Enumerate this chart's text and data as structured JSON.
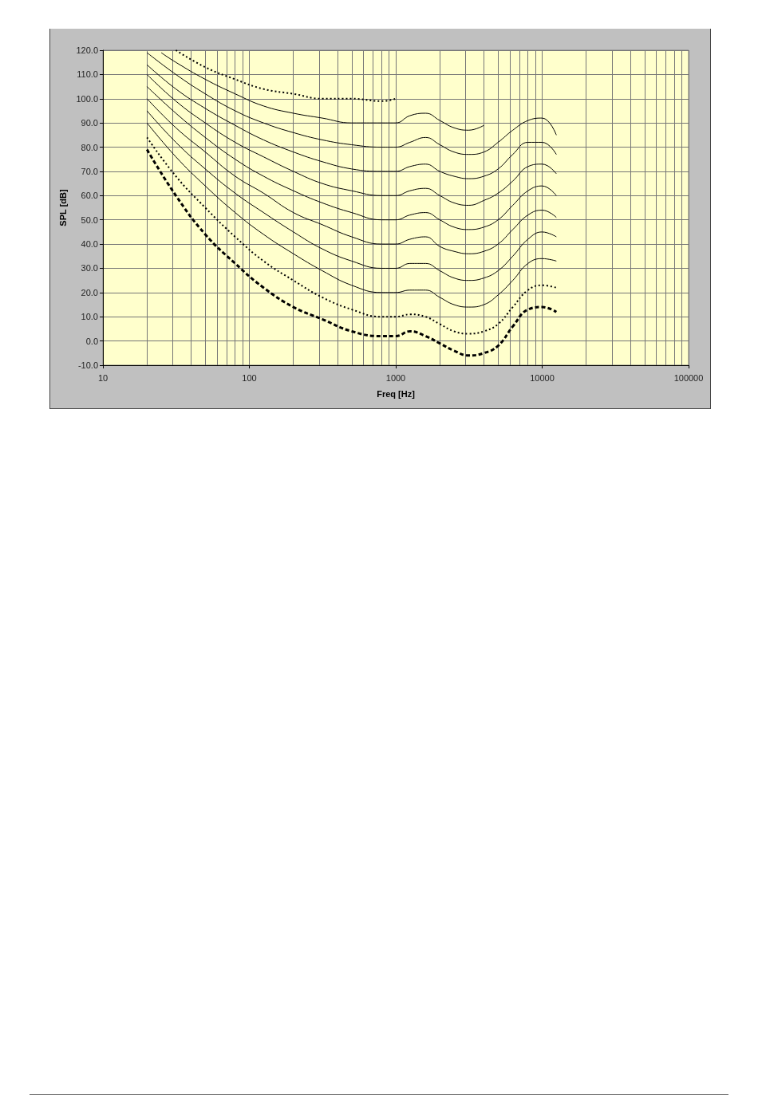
{
  "chart_data": {
    "type": "line",
    "xlabel": "Freq [Hz]",
    "ylabel": "SPL [dB]",
    "log": "x",
    "grid": true,
    "marker": "none",
    "xlim": [
      10,
      100000
    ],
    "xticks": [
      10,
      100,
      1000,
      10000,
      100000
    ],
    "ylim": [
      -10,
      120
    ],
    "yticks": [
      {
        "value": -10,
        "label": "-10.0"
      },
      {
        "value": 0,
        "label": "0.0"
      },
      {
        "value": 10,
        "label": "10.0"
      },
      {
        "value": 20,
        "label": "20.0"
      },
      {
        "value": 30,
        "label": "30.0"
      },
      {
        "value": 40,
        "label": "40.0"
      },
      {
        "value": 50,
        "label": "50.0"
      },
      {
        "value": 60,
        "label": "60.0"
      },
      {
        "value": 70,
        "label": "70.0"
      },
      {
        "value": 80,
        "label": "80.0"
      },
      {
        "value": 90,
        "label": "90.0"
      },
      {
        "value": 100,
        "label": "100.0"
      },
      {
        "value": 110,
        "label": "110.0"
      },
      {
        "value": 120,
        "label": "120.0"
      }
    ],
    "x": [
      20,
      31.5,
      50,
      80,
      125,
      200,
      315,
      500,
      800,
      1000,
      1250,
      1600,
      2000,
      2500,
      3150,
      4000,
      5000,
      6300,
      8000,
      10000,
      12500
    ],
    "series": [
      {
        "color": "#000000",
        "line_style": "dashed",
        "values": [
          79,
          60,
          44,
          32,
          22,
          14,
          9,
          4,
          2,
          2,
          4,
          2,
          -1,
          -4,
          -6,
          -5,
          -2,
          6,
          13,
          14,
          12
        ]
      },
      {
        "color": "#000000",
        "line_style": "dotted",
        "values": [
          84,
          68,
          55,
          43,
          33,
          25,
          18,
          13,
          10,
          10,
          11,
          10,
          7,
          4,
          3,
          4,
          7,
          14,
          21,
          23,
          22
        ]
      },
      {
        "color": "#000000",
        "line_style": "solid",
        "values": [
          90,
          76,
          64,
          53,
          44,
          36,
          29,
          23,
          20,
          20,
          21,
          21,
          18,
          15,
          14,
          15,
          19,
          25,
          32,
          34,
          33
        ]
      },
      {
        "color": "#000000",
        "line_style": "solid",
        "values": [
          95,
          82,
          71,
          61,
          53,
          45,
          38,
          33,
          30,
          30,
          32,
          32,
          29,
          26,
          25,
          26,
          29,
          35,
          42,
          45,
          43
        ]
      },
      {
        "color": "#000000",
        "line_style": "solid",
        "values": [
          100,
          88,
          78,
          68,
          61,
          53,
          48,
          43,
          40,
          40,
          42,
          43,
          39,
          37,
          36,
          37,
          40,
          46,
          52,
          54,
          51
        ]
      },
      {
        "color": "#000000",
        "line_style": "solid",
        "values": [
          105,
          94,
          84,
          75,
          68,
          62,
          57,
          53,
          50,
          50,
          52,
          53,
          50,
          47,
          46,
          47,
          50,
          56,
          62,
          64,
          60
        ]
      },
      {
        "color": "#000000",
        "line_style": "solid",
        "values": [
          110,
          99,
          90,
          82,
          76,
          70,
          65,
          62,
          60,
          60,
          62,
          63,
          60,
          57,
          56,
          58,
          61,
          66,
          72,
          73,
          69
        ]
      },
      {
        "color": "#000000",
        "line_style": "solid",
        "values": [
          114,
          104,
          96,
          89,
          83,
          78,
          74,
          71,
          70,
          70,
          72,
          73,
          70,
          68,
          67,
          68,
          71,
          77,
          82,
          82,
          77
        ]
      },
      {
        "color": "#000000",
        "line_style": "solid",
        "values": [
          119,
          110,
          102,
          95,
          90,
          86,
          83,
          81,
          80,
          80,
          82,
          84,
          81,
          78,
          77,
          78,
          82,
          87,
          91,
          92,
          85
        ]
      },
      {
        "color": "#000000",
        "line_style": "solid",
        "x": [
          25,
          31.5,
          50,
          80,
          125,
          200,
          315,
          500,
          800,
          1000,
          1250,
          1600,
          2000,
          2500,
          3150,
          4000
        ],
        "values": [
          119,
          115,
          108,
          102,
          97,
          94,
          92,
          90,
          90,
          90,
          93,
          94,
          91,
          88,
          87,
          89
        ]
      },
      {
        "color": "#000000",
        "line_style": "dotted",
        "x": [
          31.5,
          50,
          80,
          125,
          200,
          315,
          500,
          800,
          1000
        ],
        "values": [
          120,
          113,
          108,
          104,
          102,
          100,
          100,
          99,
          100
        ]
      }
    ]
  }
}
